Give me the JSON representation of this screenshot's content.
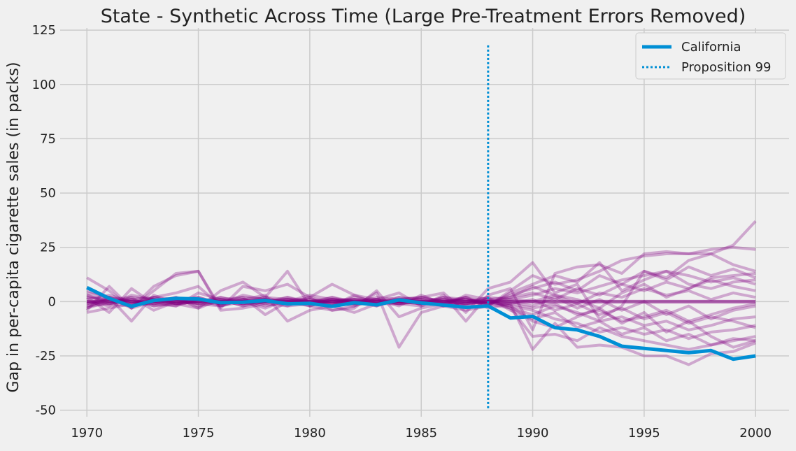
{
  "chart_data": {
    "type": "line",
    "title": "State - Synthetic Across Time (Large Pre-Treatment Errors Removed)",
    "xlabel": "",
    "ylabel": "Gap in per-capita cigarette sales (in packs)",
    "xlim": [
      1968.8,
      2001.5
    ],
    "ylim": [
      -53,
      126
    ],
    "x_ticks": [
      1970,
      1975,
      1980,
      1985,
      1990,
      1995,
      2000
    ],
    "y_ticks": [
      -50,
      -25,
      0,
      25,
      50,
      75,
      100,
      125
    ],
    "grid": true,
    "legend_position": "top-right",
    "treated_series": {
      "name": "California",
      "color": "#008fd5",
      "x": [
        1970,
        1971,
        1972,
        1973,
        1974,
        1975,
        1976,
        1977,
        1978,
        1979,
        1980,
        1981,
        1982,
        1983,
        1984,
        1985,
        1986,
        1987,
        1988,
        1989,
        1990,
        1991,
        1992,
        1993,
        1994,
        1995,
        1996,
        1997,
        1998,
        1999,
        2000
      ],
      "y": [
        6.5,
        1.5,
        -2.2,
        0.5,
        1.5,
        1.2,
        -0.5,
        -0.3,
        0.5,
        -1.0,
        -0.8,
        -2.2,
        -0.5,
        -1.5,
        0.8,
        -0.6,
        -1.6,
        -2.6,
        -2.0,
        -7.5,
        -6.8,
        -12.0,
        -13.0,
        -16.0,
        -20.5,
        -21.5,
        -22.5,
        -23.5,
        -22.5,
        -26.5,
        -25.0
      ]
    },
    "intervention": {
      "name": "Proposition 99",
      "x": 1988,
      "y_range": [
        -50,
        118
      ],
      "color": "#008fd5"
    },
    "control_series_color": "#800080",
    "control_series": [
      {
        "y": [
          11,
          5,
          -3,
          7,
          12,
          14,
          -3,
          7,
          5,
          8,
          2,
          -4,
          -2,
          4,
          -21,
          -5,
          -2,
          -4,
          -2,
          5,
          12,
          8,
          10,
          14,
          19,
          21,
          22,
          22,
          24,
          25,
          24
        ]
      },
      {
        "y": [
          -5,
          -3,
          -1,
          2,
          4,
          7,
          -2,
          1,
          3,
          -9,
          -4,
          -2,
          -5,
          -1,
          1,
          2,
          4,
          -5,
          6,
          9,
          18,
          4,
          8,
          -8,
          -2,
          14,
          11,
          19,
          22,
          26,
          37
        ]
      },
      {
        "y": [
          4,
          2,
          -9,
          3,
          -1,
          -3,
          5,
          9,
          2,
          14,
          -2,
          -4,
          -3,
          5,
          -7,
          -3,
          -1,
          2,
          -3,
          -1,
          -22,
          -10,
          -21,
          -20,
          -21,
          -25,
          -25,
          -29,
          -24,
          -23,
          -19
        ]
      },
      {
        "y": [
          -4,
          7,
          -3,
          5,
          13,
          14,
          -4,
          -3,
          -1,
          -2,
          2,
          8,
          3,
          1,
          4,
          -2,
          3,
          -9,
          3,
          6,
          -13,
          13,
          16,
          17,
          13,
          22,
          23,
          22,
          22,
          17,
          14
        ]
      },
      {
        "y": [
          2,
          -5,
          6,
          -1,
          -2,
          4,
          1,
          2,
          -6,
          0,
          3,
          1,
          -1,
          0,
          2,
          1,
          -2,
          3,
          1,
          -3,
          -16,
          -15,
          -18,
          -12,
          -16,
          -18,
          -20,
          -22,
          -20,
          -18,
          -16
        ]
      },
      {
        "y": [
          -2,
          1,
          2,
          -4,
          0,
          2,
          -1,
          3,
          1,
          -2,
          -1,
          2,
          0,
          1,
          -2,
          3,
          -1,
          2,
          -2,
          4,
          8,
          12,
          9,
          18,
          5,
          10,
          14,
          12,
          9,
          11,
          8
        ]
      },
      {
        "y": [
          3,
          -1,
          -2,
          2,
          1,
          -1,
          2,
          0,
          -3,
          1,
          0,
          -2,
          3,
          -1,
          0,
          -1,
          2,
          1,
          0,
          -2,
          -4,
          -8,
          -10,
          -14,
          -12,
          -15,
          -13,
          -17,
          -14,
          -13,
          -11
        ]
      },
      {
        "y": [
          -1,
          2,
          0,
          -1,
          2,
          -3,
          1,
          -2,
          1,
          0,
          -2,
          1,
          -1,
          2,
          1,
          0,
          -1,
          -1,
          2,
          1,
          3,
          6,
          4,
          7,
          10,
          12,
          14,
          8,
          6,
          9,
          10
        ]
      },
      {
        "y": [
          0,
          -2,
          3,
          1,
          -1,
          1,
          -2,
          1,
          0,
          2,
          -1,
          0,
          1,
          -2,
          1,
          2,
          0,
          1,
          -1,
          -3,
          -6,
          -2,
          -5,
          -9,
          -7,
          -11,
          -9,
          -13,
          -11,
          -8,
          -7
        ]
      },
      {
        "y": [
          5,
          2,
          -3,
          0,
          1,
          -2,
          0,
          2,
          1,
          -1,
          2,
          -1,
          0,
          1,
          -1,
          -2,
          1,
          0,
          -1,
          2,
          4,
          1,
          6,
          3,
          8,
          5,
          9,
          6,
          11,
          12,
          13
        ]
      },
      {
        "y": [
          -3,
          0,
          1,
          -2,
          -1,
          0,
          1,
          -1,
          2,
          1,
          0,
          2,
          -1,
          -1,
          0,
          1,
          -2,
          -1,
          1,
          -1,
          1,
          -4,
          -1,
          -6,
          -3,
          -8,
          -5,
          -10,
          -7,
          -9,
          -12
        ]
      },
      {
        "y": [
          2,
          1,
          -1,
          0,
          -2,
          1,
          0,
          -1,
          0,
          1,
          1,
          -1,
          2,
          0,
          -1,
          0,
          1,
          -2,
          0,
          0,
          -2,
          2,
          -3,
          1,
          -4,
          0,
          -6,
          -2,
          -8,
          -4,
          -2
        ]
      },
      {
        "y": [
          -2,
          -1,
          2,
          1,
          0,
          -1,
          -2,
          0,
          1,
          -1,
          0,
          1,
          0,
          -2,
          2,
          -1,
          0,
          1,
          -1,
          3,
          6,
          9,
          5,
          12,
          8,
          14,
          10,
          16,
          12,
          15,
          11
        ]
      },
      {
        "y": [
          1,
          3,
          0,
          -1,
          1,
          2,
          -1,
          1,
          -2,
          0,
          -1,
          0,
          1,
          1,
          -1,
          0,
          -2,
          0,
          2,
          -4,
          -8,
          -5,
          -12,
          -9,
          -15,
          -12,
          -18,
          -15,
          -20,
          -17,
          -18
        ]
      },
      {
        "y": [
          0,
          -1,
          1,
          2,
          -1,
          0,
          1,
          -2,
          0,
          1,
          -2,
          1,
          0,
          -1,
          0,
          1,
          1,
          -1,
          0,
          1,
          0,
          3,
          -1,
          4,
          2,
          6,
          3,
          5,
          1,
          4,
          2
        ]
      },
      {
        "y": [
          -1,
          1,
          -2,
          0,
          2,
          -1,
          0,
          1,
          -1,
          2,
          0,
          -1,
          1,
          0,
          1,
          -1,
          0,
          2,
          -1,
          -1,
          -3,
          -1,
          -6,
          -4,
          -9,
          -7,
          -4,
          -9,
          -6,
          -3,
          -1
        ]
      },
      {
        "y": [
          3,
          0,
          1,
          -2,
          0,
          1,
          -1,
          0,
          2,
          -1,
          1,
          0,
          -2,
          1,
          0,
          -1,
          2,
          0,
          1,
          2,
          7,
          3,
          1,
          -3,
          4,
          8,
          2,
          6,
          10,
          7,
          5
        ]
      },
      {
        "y": [
          -3,
          2,
          -1,
          1,
          -1,
          0,
          2,
          -1,
          0,
          0,
          -1,
          1,
          1,
          -1,
          -1,
          2,
          0,
          -1,
          0,
          -2,
          -9,
          -12,
          -7,
          -3,
          -10,
          -5,
          -14,
          -9,
          -16,
          -21,
          -18
        ]
      }
    ]
  }
}
